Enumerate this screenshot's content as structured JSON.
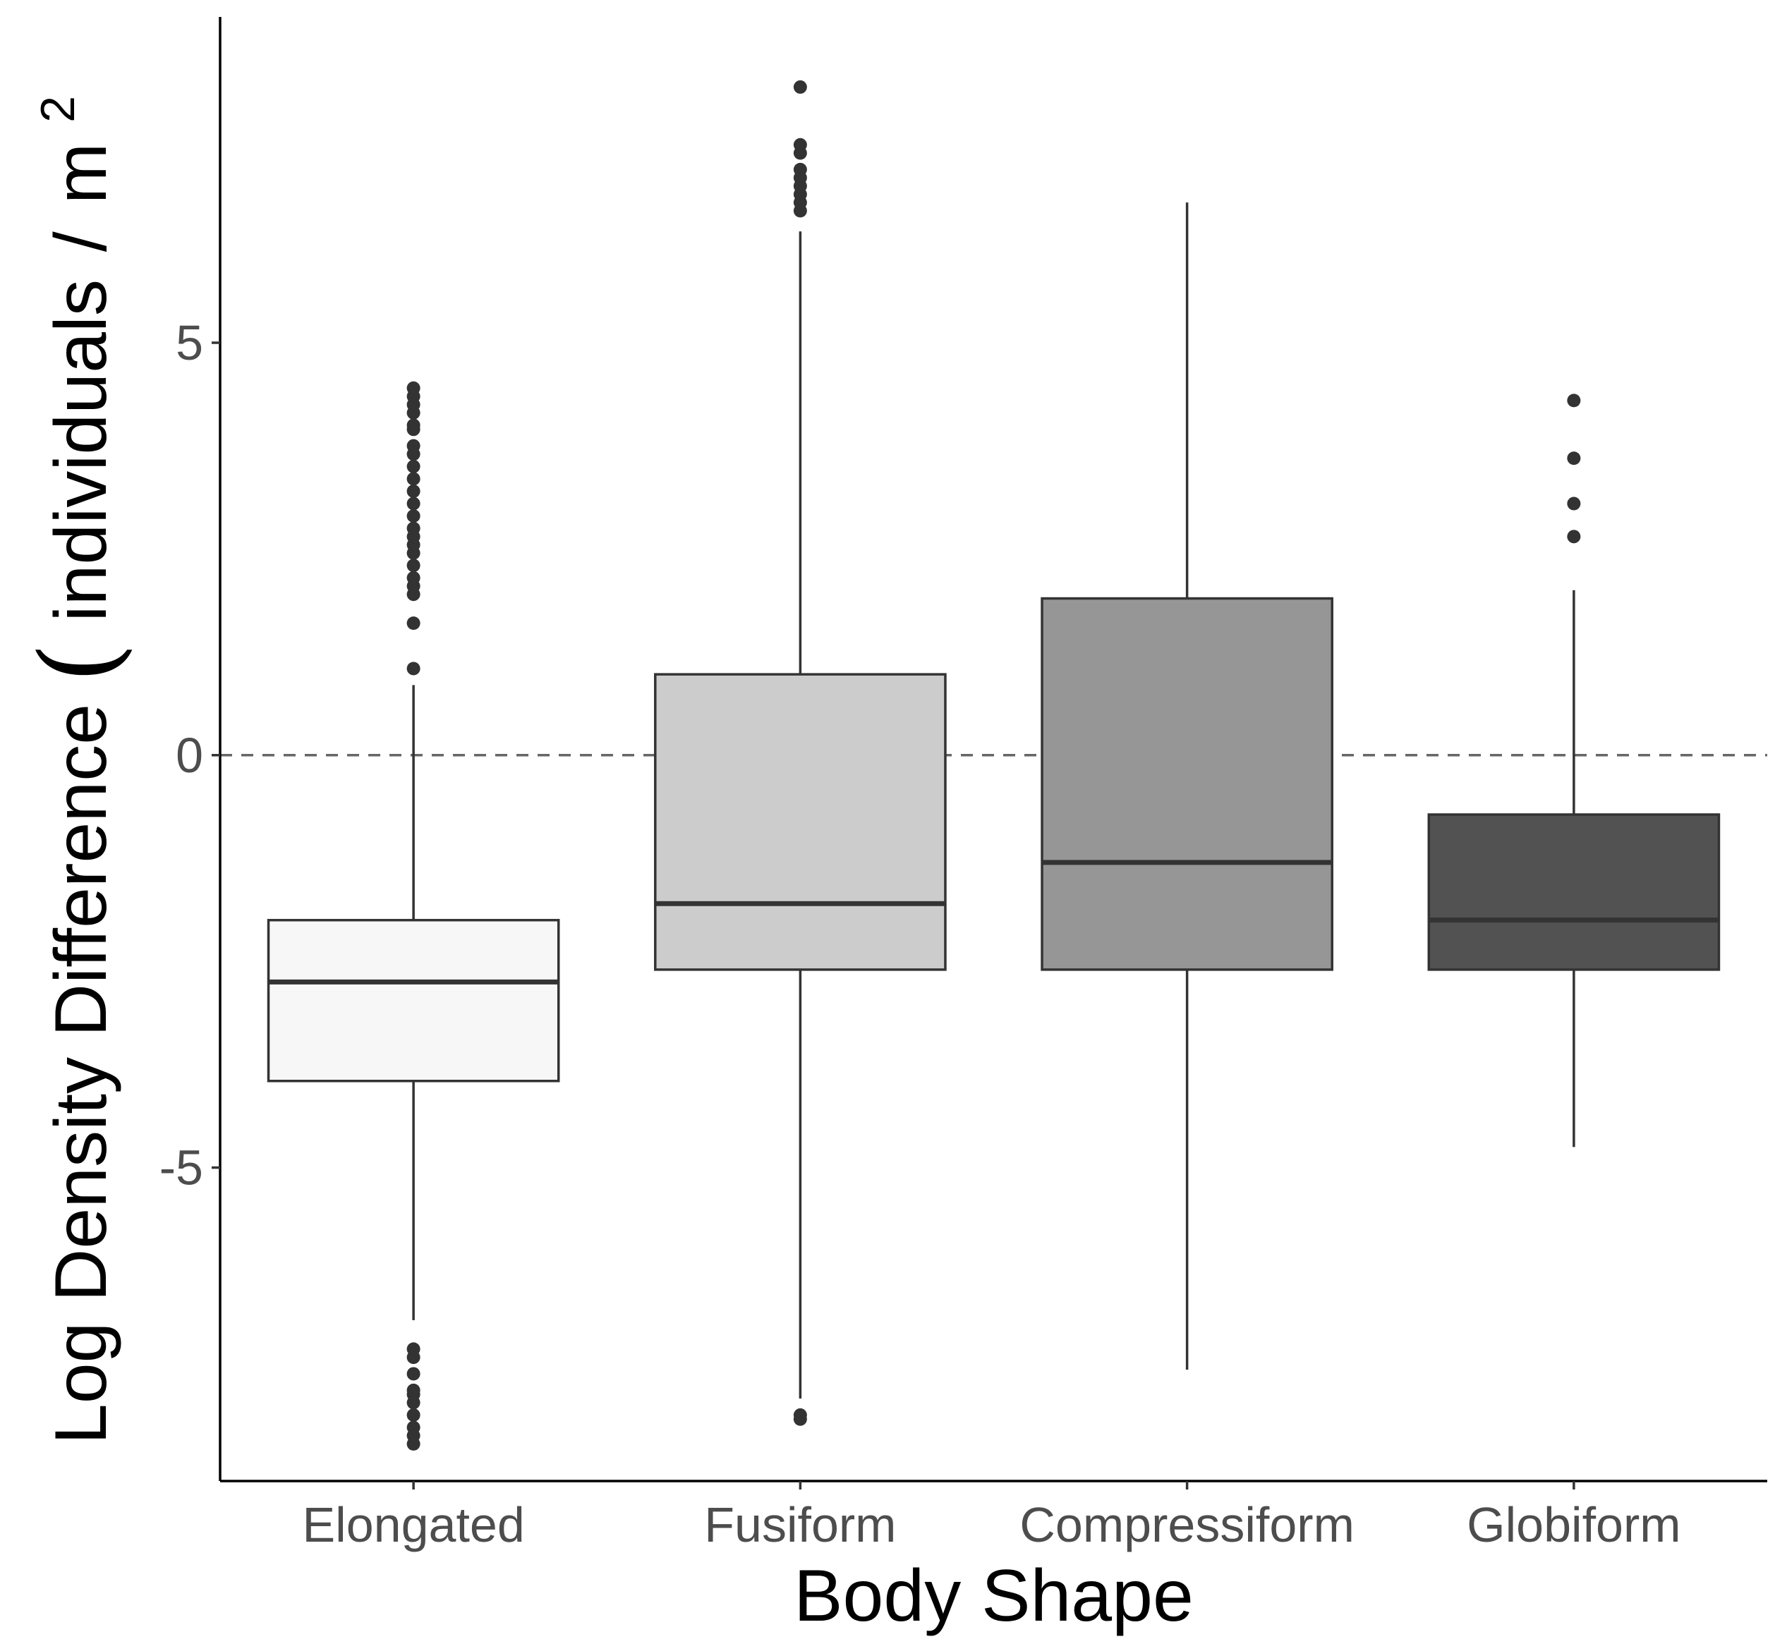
{
  "chart_data": {
    "type": "boxplot",
    "xlabel": "Body Shape",
    "ylabel": "Log Density Difference (individuals/m²)",
    "ylabel_parts": {
      "main": "Log Density Difference ",
      "open": "(",
      "unit": "individuals",
      "slash": "/",
      "base": "m",
      "exponent": "2"
    },
    "ylim": [
      -8.8,
      8.95
    ],
    "yticks": [
      {
        "value": 5,
        "label": "5"
      },
      {
        "value": 0,
        "label": "0"
      },
      {
        "value": -5,
        "label": "-5"
      }
    ],
    "reference_line": {
      "value": 0,
      "style": "dashed",
      "color": "#666666"
    },
    "grid": false,
    "legend": "none",
    "categories": [
      "Elongated",
      "Fusiform",
      "Compressiform",
      "Globiform"
    ],
    "boxes": [
      {
        "category": "Elongated",
        "color": "#f7f7f7",
        "whisker_low": -6.85,
        "q1": -3.95,
        "median": -2.75,
        "q3": -2.0,
        "whisker_high": 0.85,
        "outliers": [
          1.05,
          1.6,
          1.95,
          2.05,
          2.15,
          2.3,
          2.45,
          2.55,
          2.65,
          2.75,
          2.9,
          3.05,
          3.2,
          3.35,
          3.5,
          3.65,
          3.75,
          3.95,
          4.0,
          4.15,
          4.25,
          4.35,
          4.45,
          -7.2,
          -7.3,
          -7.5,
          -7.7,
          -7.75,
          -7.85,
          -8.0,
          -8.15,
          -8.25,
          -8.35
        ]
      },
      {
        "category": "Fusiform",
        "color": "#cccccc",
        "whisker_low": -7.8,
        "q1": -2.6,
        "median": -1.8,
        "q3": 0.98,
        "whisker_high": 6.35,
        "outliers": [
          6.6,
          6.7,
          6.8,
          6.9,
          7.0,
          7.1,
          7.3,
          7.4,
          8.1,
          -8.0,
          -8.05
        ]
      },
      {
        "category": "Compressiform",
        "color": "#969696",
        "whisker_low": -7.45,
        "q1": -2.6,
        "median": -1.3,
        "q3": 1.9,
        "whisker_high": 6.7,
        "outliers": []
      },
      {
        "category": "Globiform",
        "color": "#525252",
        "whisker_low": -4.75,
        "q1": -2.6,
        "median": -2.0,
        "q3": -0.72,
        "whisker_high": 2.0,
        "outliers": [
          4.3,
          3.6,
          3.05,
          2.65
        ]
      }
    ]
  }
}
